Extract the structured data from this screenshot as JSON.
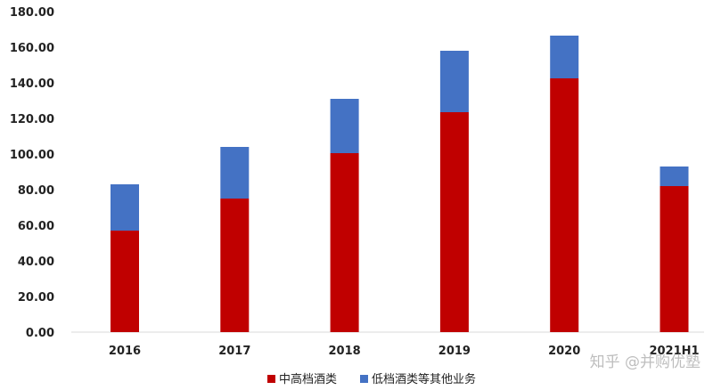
{
  "chart_data": {
    "type": "bar",
    "stacked": true,
    "categories": [
      "2016",
      "2017",
      "2018",
      "2019",
      "2020",
      "2021H1"
    ],
    "series": [
      {
        "name": "中高档酒类",
        "color": "#c00000",
        "values": [
          57,
          75,
          100.5,
          123.5,
          142.5,
          82
        ]
      },
      {
        "name": "低档酒类等其他业务",
        "color": "#4472c4",
        "values": [
          26,
          29,
          30.5,
          34.5,
          24,
          11
        ]
      }
    ],
    "ylim": [
      0,
      180
    ],
    "yticks": [
      "0.00",
      "20.00",
      "40.00",
      "60.00",
      "80.00",
      "100.00",
      "120.00",
      "140.00",
      "160.00",
      "180.00"
    ],
    "legend_position": "bottom",
    "grid": false
  },
  "watermark": "知乎 @并购优塾"
}
